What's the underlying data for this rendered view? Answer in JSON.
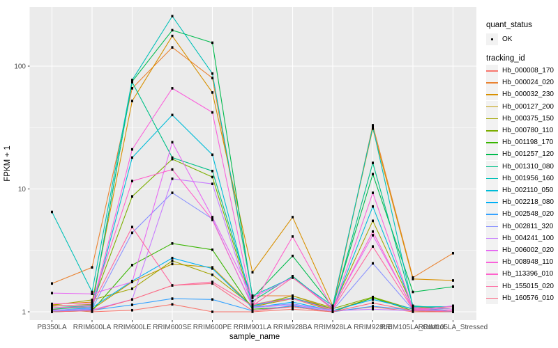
{
  "figure": {
    "background": "#FFFFFF",
    "panel_background": "#EBEBEB",
    "grid_color": "#FFFFFF",
    "axis_text_color": "#4D4D4D",
    "tick_color": "#333333",
    "point_color": "#000000",
    "legend_key_background": "#F2F2F2"
  },
  "legend": {
    "quant_status_title": "quant_status",
    "quant_status_items": [
      {
        "label": "OK",
        "marker": "point-icon"
      }
    ],
    "tracking_title": "tracking_id"
  },
  "axes": {
    "y_title": "FPKM + 1",
    "x_title": "sample_name",
    "y_tick_labels": [
      "100",
      "10",
      "1"
    ],
    "x_tick_labels": [
      "PB350LA",
      "RRIM600LA",
      "RRIM600LE",
      "RRIM600SE",
      "RRIM600PE",
      "RRIM901LA",
      "RRIM928BA",
      "RRIM928LA",
      "RRIM928LE",
      "RRIM105LA_Control",
      "RRIM105LA_Stressed"
    ]
  },
  "chart_data": {
    "type": "line",
    "title": "",
    "xlabel": "sample_name",
    "ylabel": "FPKM + 1",
    "y_scale": "log10",
    "y_major_ticks": [
      1,
      10,
      100
    ],
    "y_minor_ticks": [
      3.1623,
      31.6228
    ],
    "ylim": [
      0.87,
      300
    ],
    "grid": true,
    "legend_position": "right",
    "quant_status": "OK",
    "categories": [
      "PB350LA",
      "RRIM600LA",
      "RRIM600LE",
      "RRIM600SE",
      "RRIM600PE",
      "RRIM901LA",
      "RRIM928BA",
      "RRIM928LA",
      "RRIM928LE",
      "RRIM105LA_Control",
      "RRIM105LA_Stressed"
    ],
    "series": [
      {
        "name": "Hb_000008_170",
        "color": "#F8766D",
        "values": [
          1.05,
          1.0,
          1.03,
          1.15,
          1.0,
          1.0,
          1.05,
          1.0,
          1.1,
          1.0,
          1.0
        ]
      },
      {
        "name": "Hb_000024_020",
        "color": "#EA8331",
        "values": [
          1.7,
          2.3,
          66,
          142,
          80,
          1.35,
          1.35,
          1.05,
          33,
          1.9,
          3.0
        ]
      },
      {
        "name": "Hb_000032_230",
        "color": "#D89000",
        "values": [
          1.15,
          1.2,
          52,
          176,
          61,
          2.1,
          5.9,
          1.12,
          31,
          1.85,
          1.8
        ]
      },
      {
        "name": "Hb_000127_200",
        "color": "#C09B00",
        "values": [
          1.0,
          1.05,
          1.75,
          2.45,
          2.3,
          1.1,
          1.28,
          1.02,
          1.3,
          1.05,
          1.02
        ]
      },
      {
        "name": "Hb_000375_150",
        "color": "#A3A500",
        "values": [
          1.13,
          1.25,
          1.54,
          2.6,
          2.0,
          1.12,
          1.35,
          1.08,
          5.5,
          1.1,
          1.05
        ]
      },
      {
        "name": "Hb_000780_110",
        "color": "#7CAE00",
        "values": [
          1.11,
          1.15,
          8.7,
          17.5,
          12.5,
          1.15,
          1.3,
          1.06,
          1.32,
          1.05,
          1.0
        ]
      },
      {
        "name": "Hb_001198_170",
        "color": "#39B600",
        "values": [
          1.0,
          1.02,
          2.4,
          3.6,
          3.2,
          1.05,
          1.1,
          1.0,
          1.3,
          1.02,
          1.0
        ]
      },
      {
        "name": "Hb_001257_120",
        "color": "#00BB4E",
        "values": [
          1.05,
          1.1,
          75,
          196,
          155,
          1.3,
          2.85,
          1.1,
          13.2,
          1.45,
          1.6
        ]
      },
      {
        "name": "Hb_001310_080",
        "color": "#00C087",
        "values": [
          1.08,
          1.12,
          74,
          18,
          14,
          1.22,
          1.95,
          1.07,
          16.3,
          1.12,
          1.05
        ]
      },
      {
        "name": "Hb_001956_160",
        "color": "#00C0B8",
        "values": [
          6.5,
          1.45,
          77,
          255,
          87,
          1.35,
          1.9,
          1.12,
          32,
          1.1,
          1.1
        ]
      },
      {
        "name": "Hb_002110_050",
        "color": "#00BCD8",
        "values": [
          1.0,
          1.05,
          18,
          40,
          19,
          1.12,
          1.3,
          1.04,
          7.2,
          1.08,
          1.02
        ]
      },
      {
        "name": "Hb_002218_080",
        "color": "#00B0F6",
        "values": [
          1.02,
          1.08,
          1.78,
          2.74,
          2.25,
          1.08,
          1.2,
          1.02,
          1.26,
          1.06,
          1.0
        ]
      },
      {
        "name": "Hb_002548_020",
        "color": "#35A2FF",
        "values": [
          1.0,
          1.03,
          1.14,
          1.28,
          1.26,
          1.02,
          1.12,
          1.0,
          1.11,
          1.03,
          1.0
        ]
      },
      {
        "name": "Hb_002811_320",
        "color": "#8B93FF",
        "values": [
          1.03,
          1.06,
          4.4,
          9.3,
          5.7,
          1.1,
          1.16,
          1.03,
          2.48,
          1.04,
          1.0
        ]
      },
      {
        "name": "Hb_004241_100",
        "color": "#C77CFF",
        "values": [
          1.02,
          1.04,
          1.26,
          12.1,
          11.0,
          1.08,
          1.14,
          1.02,
          1.05,
          1.02,
          1.12
        ]
      },
      {
        "name": "Hb_006002_020",
        "color": "#E76BF3",
        "values": [
          1.42,
          1.4,
          1.75,
          24,
          5.9,
          1.3,
          1.9,
          1.08,
          4.2,
          1.08,
          1.05
        ]
      },
      {
        "name": "Hb_008948_110",
        "color": "#FA62DB",
        "values": [
          1.08,
          1.1,
          21,
          66,
          42,
          1.15,
          1.28,
          1.04,
          9.3,
          1.06,
          1.02
        ]
      },
      {
        "name": "Hb_113396_010",
        "color": "#FF61CC",
        "values": [
          1.16,
          1.18,
          11.6,
          14.4,
          5.6,
          1.12,
          4.1,
          1.06,
          4.5,
          1.05,
          1.02
        ]
      },
      {
        "name": "Hb_155015_020",
        "color": "#FF68A1",
        "values": [
          1.12,
          1.14,
          4.9,
          1.64,
          1.75,
          1.12,
          1.9,
          1.05,
          3.4,
          1.05,
          1.1
        ]
      },
      {
        "name": "Hb_160576_010",
        "color": "#FC6883",
        "values": [
          1.0,
          1.02,
          1.26,
          1.64,
          1.7,
          1.02,
          1.1,
          1.0,
          1.18,
          1.02,
          1.0
        ]
      }
    ]
  }
}
